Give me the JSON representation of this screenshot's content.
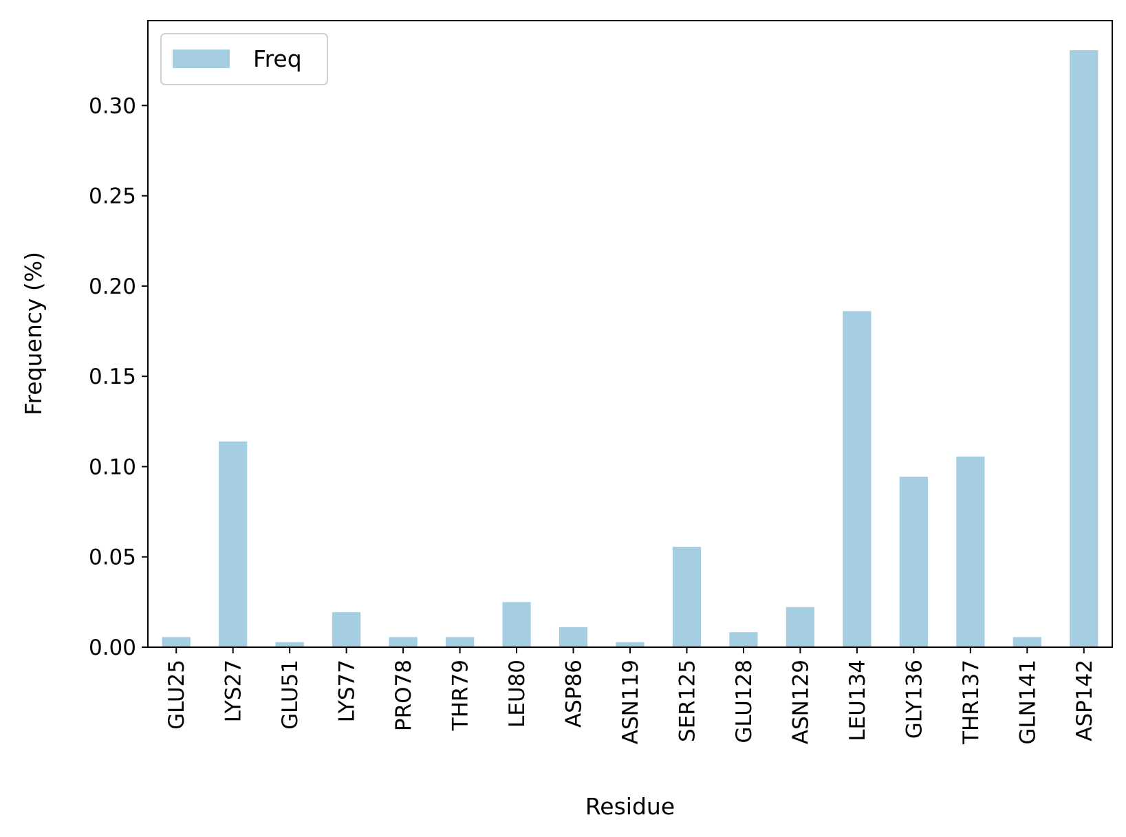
{
  "chart_data": {
    "type": "bar",
    "title": "",
    "xlabel": "Residue",
    "ylabel": "Frequency (%)",
    "categories": [
      "GLU25",
      "LYS27",
      "GLU51",
      "LYS77",
      "PRO78",
      "THR79",
      "LEU80",
      "ASP86",
      "ASN119",
      "SER125",
      "GLU128",
      "ASN129",
      "LEU134",
      "GLY136",
      "THR137",
      "GLN141",
      "ASP142"
    ],
    "series": [
      {
        "name": "Freq",
        "color": "#a6cee3",
        "values": [
          0.0056,
          0.1139,
          0.0028,
          0.0194,
          0.0056,
          0.0056,
          0.025,
          0.0111,
          0.0028,
          0.0556,
          0.0083,
          0.0222,
          0.1861,
          0.0944,
          0.1056,
          0.0056,
          0.3306
        ]
      }
    ],
    "ylim": [
      0,
      0.347
    ],
    "yticks": [
      "0.00",
      "0.05",
      "0.10",
      "0.15",
      "0.20",
      "0.25",
      "0.30"
    ],
    "ytick_values": [
      0,
      0.05,
      0.1,
      0.15,
      0.2,
      0.25,
      0.3
    ],
    "grid": false,
    "legend_position": "top-left"
  }
}
